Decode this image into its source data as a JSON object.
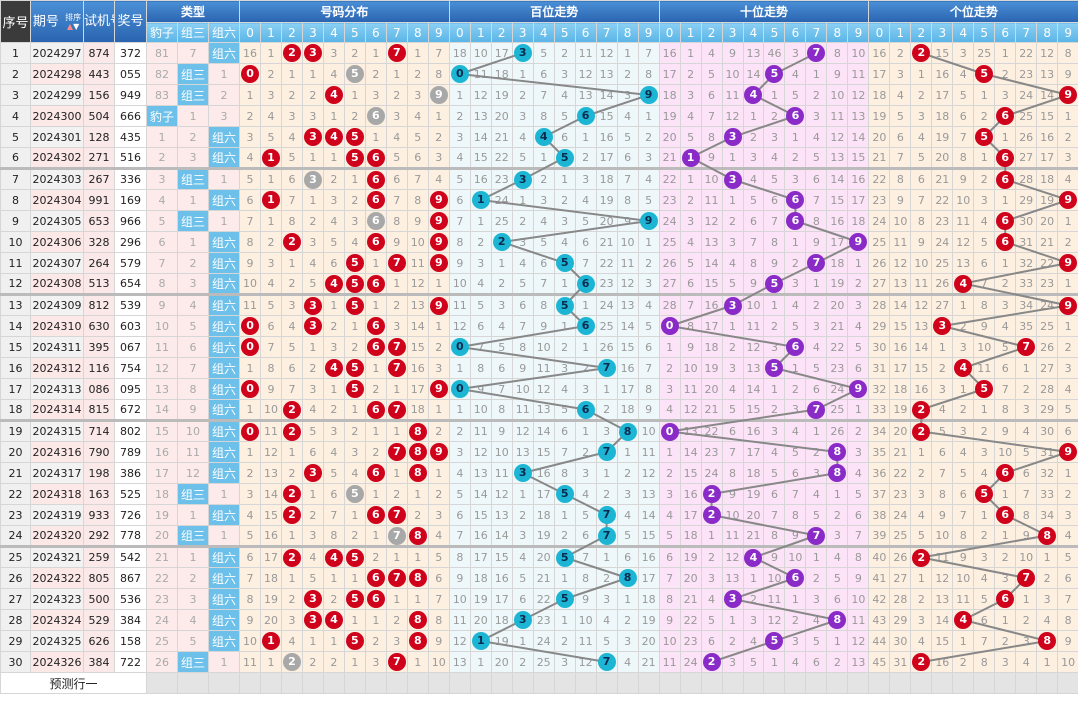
{
  "header": {
    "seq": "序号",
    "issue": "期号",
    "sort": "排序",
    "test": "试机号",
    "win": "奖号",
    "type": "类型",
    "distribution": "号码分布",
    "hundreds": "百位走势",
    "tens": "十位走势",
    "units": "个位走势",
    "type_cols": [
      "豹子",
      "组三",
      "组六"
    ],
    "digits": [
      "0",
      "1",
      "2",
      "3",
      "4",
      "5",
      "6",
      "7",
      "8",
      "9"
    ]
  },
  "colors": {
    "distribution_single": "#d0021b",
    "distribution_repeat": "#a8a8a8",
    "hundreds_ball": "#1cb6d4",
    "tens_ball": "#8a2bc8",
    "units_ball": "#d0021b",
    "type_hit": "#6cc0ea"
  },
  "rows": [
    {
      "seq": "1",
      "issue": "2024297",
      "test": "874",
      "win": "372"
    },
    {
      "seq": "2",
      "issue": "2024298",
      "test": "443",
      "win": "055"
    },
    {
      "seq": "3",
      "issue": "2024299",
      "test": "156",
      "win": "949"
    },
    {
      "seq": "4",
      "issue": "2024300",
      "test": "504",
      "win": "666"
    },
    {
      "seq": "5",
      "issue": "2024301",
      "test": "128",
      "win": "435"
    },
    {
      "seq": "6",
      "issue": "2024302",
      "test": "271",
      "win": "516"
    },
    {
      "seq": "7",
      "issue": "2024303",
      "test": "267",
      "win": "336"
    },
    {
      "seq": "8",
      "issue": "2024304",
      "test": "991",
      "win": "169"
    },
    {
      "seq": "9",
      "issue": "2024305",
      "test": "653",
      "win": "966"
    },
    {
      "seq": "10",
      "issue": "2024306",
      "test": "328",
      "win": "296"
    },
    {
      "seq": "11",
      "issue": "2024307",
      "test": "264",
      "win": "579"
    },
    {
      "seq": "12",
      "issue": "2024308",
      "test": "513",
      "win": "654"
    },
    {
      "seq": "13",
      "issue": "2024309",
      "test": "812",
      "win": "539"
    },
    {
      "seq": "14",
      "issue": "2024310",
      "test": "630",
      "win": "603"
    },
    {
      "seq": "15",
      "issue": "2024311",
      "test": "395",
      "win": "067"
    },
    {
      "seq": "16",
      "issue": "2024312",
      "test": "116",
      "win": "754"
    },
    {
      "seq": "17",
      "issue": "2024313",
      "test": "086",
      "win": "095"
    },
    {
      "seq": "18",
      "issue": "2024314",
      "test": "815",
      "win": "672"
    },
    {
      "seq": "19",
      "issue": "2024315",
      "test": "714",
      "win": "802"
    },
    {
      "seq": "20",
      "issue": "2024316",
      "test": "790",
      "win": "789"
    },
    {
      "seq": "21",
      "issue": "2024317",
      "test": "198",
      "win": "386"
    },
    {
      "seq": "22",
      "issue": "2024318",
      "test": "163",
      "win": "525"
    },
    {
      "seq": "23",
      "issue": "2024319",
      "test": "933",
      "win": "726"
    },
    {
      "seq": "24",
      "issue": "2024320",
      "test": "292",
      "win": "778"
    },
    {
      "seq": "25",
      "issue": "2024321",
      "test": "259",
      "win": "542"
    },
    {
      "seq": "26",
      "issue": "2024322",
      "test": "805",
      "win": "867"
    },
    {
      "seq": "27",
      "issue": "2024323",
      "test": "500",
      "win": "536"
    },
    {
      "seq": "28",
      "issue": "2024324",
      "test": "529",
      "win": "384"
    },
    {
      "seq": "29",
      "issue": "2024325",
      "test": "626",
      "win": "158"
    },
    {
      "seq": "30",
      "issue": "2024326",
      "test": "384",
      "win": "722"
    }
  ],
  "row1_miss": {
    "type": [
      81,
      7,
      null
    ],
    "distribution": [
      16,
      1,
      null,
      null,
      3,
      2,
      1,
      null,
      1,
      7
    ],
    "hundreds": [
      18,
      10,
      17,
      null,
      5,
      2,
      11,
      12,
      1,
      7
    ],
    "tens": [
      16,
      1,
      4,
      9,
      13,
      46,
      3,
      null,
      8,
      10
    ],
    "units": [
      16,
      2,
      null,
      15,
      3,
      25,
      1,
      22,
      12,
      8
    ]
  },
  "prediction": {
    "label": "预测行一"
  }
}
